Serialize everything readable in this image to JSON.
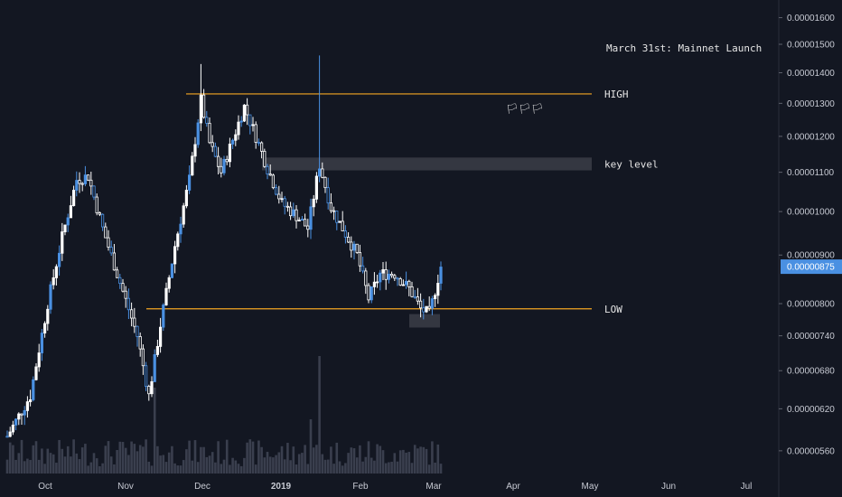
{
  "colors": {
    "background": "#131722",
    "candle": "#ffffff",
    "candle_alt": "#4a90e2",
    "volume": "#3a3f4e",
    "hline": "#f5a623",
    "zone": "#ffffff",
    "axis_text": "#c7cad3",
    "price_tag": "#4a90e2"
  },
  "chart_data": {
    "type": "candlestick",
    "x_axis": {
      "ticks": [
        "Oct",
        "Nov",
        "Dec",
        "2019",
        "Feb",
        "Mar",
        "Apr",
        "May",
        "Jun",
        "Jul"
      ],
      "bold_ticks": [
        "2019"
      ]
    },
    "y_axis": {
      "scale": "log",
      "range": [
        5.3e-06,
        1.67e-05
      ],
      "ticks": [
        "0.00001600",
        "0.00001500",
        "0.00001400",
        "0.00001300",
        "0.00001200",
        "0.00001100",
        "0.00001000",
        "0.00000900",
        "0.00000800",
        "0.00000740",
        "0.00000680",
        "0.00000620",
        "0.00000560"
      ]
    },
    "current_price": {
      "label": "0.00000875",
      "value": 8.75e-06
    },
    "horizontal_lines": [
      {
        "label": "HIGH",
        "value": 1.33e-05
      },
      {
        "label": "LOW",
        "value": 7.9e-06
      }
    ],
    "zones": [
      {
        "label": "key level",
        "low": 1.105e-05,
        "high": 1.14e-05
      },
      {
        "label": "",
        "low": 7.55e-06,
        "high": 7.8e-06
      }
    ],
    "annotations": [
      {
        "text": "March 31st: Mainnet Launch"
      },
      {
        "text": "🏳🏳🏳"
      }
    ],
    "price_path": [
      {
        "t": 0,
        "v": 5.8e-06
      },
      {
        "t": 8,
        "v": 6.4e-06
      },
      {
        "t": 14,
        "v": 8e-06
      },
      {
        "t": 19,
        "v": 9.4e-06
      },
      {
        "t": 24,
        "v": 1.08e-05
      },
      {
        "t": 28,
        "v": 1.09e-05
      },
      {
        "t": 33,
        "v": 9.6e-06
      },
      {
        "t": 38,
        "v": 8.6e-06
      },
      {
        "t": 45,
        "v": 7.4e-06
      },
      {
        "t": 49,
        "v": 6.4e-06
      },
      {
        "t": 53,
        "v": 7.6e-06
      },
      {
        "t": 58,
        "v": 9.2e-06
      },
      {
        "t": 63,
        "v": 1.08e-05
      },
      {
        "t": 67,
        "v": 1.31e-05
      },
      {
        "t": 70,
        "v": 1.18e-05
      },
      {
        "t": 74,
        "v": 1.1e-05
      },
      {
        "t": 78,
        "v": 1.19e-05
      },
      {
        "t": 82,
        "v": 1.29e-05
      },
      {
        "t": 86,
        "v": 1.2e-05
      },
      {
        "t": 90,
        "v": 1.11e-05
      },
      {
        "t": 95,
        "v": 1.02e-05
      },
      {
        "t": 100,
        "v": 9.9e-06
      },
      {
        "t": 104,
        "v": 9.6e-06
      },
      {
        "t": 108,
        "v": 1.12e-05
      },
      {
        "t": 112,
        "v": 1.01e-05
      },
      {
        "t": 116,
        "v": 9.6e-06
      },
      {
        "t": 121,
        "v": 9e-06
      },
      {
        "t": 125,
        "v": 8.1e-06
      },
      {
        "t": 129,
        "v": 8.6e-06
      },
      {
        "t": 134,
        "v": 8.6e-06
      },
      {
        "t": 139,
        "v": 8.3e-06
      },
      {
        "t": 143,
        "v": 7.9e-06
      },
      {
        "t": 146,
        "v": 7.8e-06
      },
      {
        "t": 150,
        "v": 8.75e-06
      }
    ]
  }
}
